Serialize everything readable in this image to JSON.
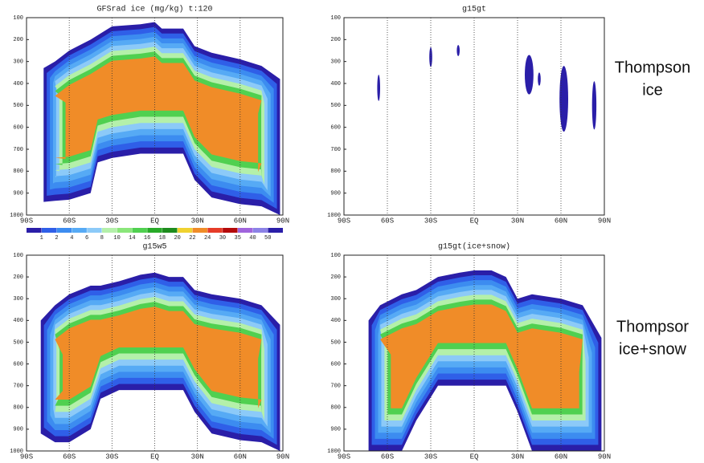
{
  "chart_data": [
    {
      "type": "contour",
      "title": "GFSrad ice (mg/kg) t:120",
      "xlim": [
        -90,
        90
      ],
      "ylim": [
        100,
        1000
      ],
      "yaxis_inverted": true,
      "xticks": [
        {
          "value": -90,
          "label": "90S"
        },
        {
          "value": -60,
          "label": "60S"
        },
        {
          "value": -30,
          "label": "30S"
        },
        {
          "value": 0,
          "label": "EQ"
        },
        {
          "value": 30,
          "label": "30N"
        },
        {
          "value": 60,
          "label": "60N"
        },
        {
          "value": 90,
          "label": "90N"
        }
      ],
      "yticks": [
        100,
        200,
        300,
        400,
        500,
        600,
        700,
        800,
        900,
        1000
      ],
      "grid": true,
      "levels": [
        1,
        2,
        4,
        6,
        8,
        10,
        14,
        16,
        18,
        20,
        22,
        24,
        30,
        35,
        40,
        50
      ],
      "level_colors": [
        "#2a1ea8",
        "#2f5fe8",
        "#3c8cf0",
        "#56aaf5",
        "#8ccaf8",
        "#b4f0aa",
        "#8ae67a",
        "#50d050",
        "#28aa28",
        "#1e8c1e",
        "#f0d230",
        "#f08c28",
        "#e63c28",
        "#b40a0a",
        "#a064dc",
        "#8c82e6",
        "#2a1ea8"
      ]
    },
    {
      "type": "contour",
      "title": "g15gt",
      "xlim": [
        -90,
        90
      ],
      "ylim": [
        100,
        1000
      ],
      "yaxis_inverted": true,
      "xticks": [
        {
          "value": -90,
          "label": "90S"
        },
        {
          "value": -60,
          "label": "60S"
        },
        {
          "value": -30,
          "label": "30S"
        },
        {
          "value": 0,
          "label": "EQ"
        },
        {
          "value": 30,
          "label": "30N"
        },
        {
          "value": 60,
          "label": "60N"
        },
        {
          "value": 90,
          "label": "90N"
        }
      ],
      "yticks": [
        100,
        200,
        300,
        400,
        500,
        600,
        700,
        800,
        900,
        1000
      ],
      "grid": true,
      "annotation": [
        "Thompson",
        "ice"
      ]
    },
    {
      "type": "contour",
      "title": "g15w5",
      "xlim": [
        -90,
        90
      ],
      "ylim": [
        100,
        1000
      ],
      "yaxis_inverted": true,
      "xticks": [
        {
          "value": -90,
          "label": "90S"
        },
        {
          "value": -60,
          "label": "60S"
        },
        {
          "value": -30,
          "label": "30S"
        },
        {
          "value": 0,
          "label": "EQ"
        },
        {
          "value": 30,
          "label": "30N"
        },
        {
          "value": 60,
          "label": "60N"
        },
        {
          "value": 90,
          "label": "90N"
        }
      ],
      "yticks": [
        100,
        200,
        300,
        400,
        500,
        600,
        700,
        800,
        900,
        1000
      ],
      "grid": true
    },
    {
      "type": "contour",
      "title": "g15gt(ice+snow)",
      "xlim": [
        -90,
        90
      ],
      "ylim": [
        100,
        1000
      ],
      "yaxis_inverted": true,
      "xticks": [
        {
          "value": -90,
          "label": "90S"
        },
        {
          "value": -60,
          "label": "60S"
        },
        {
          "value": -30,
          "label": "30S"
        },
        {
          "value": 0,
          "label": "EQ"
        },
        {
          "value": 30,
          "label": "30N"
        },
        {
          "value": 60,
          "label": "60N"
        },
        {
          "value": 90,
          "label": "90N"
        }
      ],
      "yticks": [
        100,
        200,
        300,
        400,
        500,
        600,
        700,
        800,
        900,
        1000
      ],
      "grid": true,
      "annotation": [
        "Thompsor",
        "ice+snow"
      ]
    }
  ]
}
